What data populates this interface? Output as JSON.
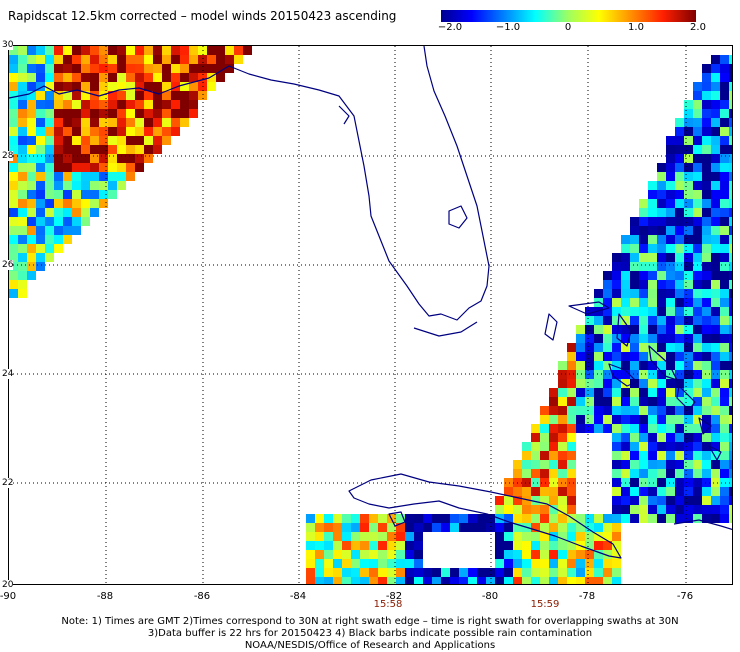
{
  "title": "Rapidscat 12.5km corrected – model winds 20150423 ascending",
  "colorbar": {
    "ticks": [
      "−2.0",
      "−1.0",
      "0",
      "1.0",
      "2.0"
    ],
    "range": [
      -2.0,
      2.0
    ]
  },
  "map": {
    "lon_range": [
      -90,
      -75
    ],
    "lat_range": [
      20,
      30
    ],
    "lon_labels": [
      "-90",
      "-88",
      "-86",
      "-84",
      "-82",
      "-80",
      "-78",
      "-76"
    ],
    "lat_labels": [
      "30",
      "28",
      "26",
      "24",
      "22",
      "20"
    ],
    "colors": {
      "land_outline": "#000080",
      "grid": "#000000",
      "time_label": "#8b1a00"
    }
  },
  "times": [
    "15:58",
    "15:59"
  ],
  "notes": [
    "Note: 1) Times are GMT 2)Times correspond to 30N at right swath edge – time is right swath for overlapping swaths at 30N",
    "3)Data buffer is 22 hrs for 20150423 4) Black barbs indicate possible rain contamination",
    "NOAA/NESDIS/Office of Research and Applications"
  ]
}
